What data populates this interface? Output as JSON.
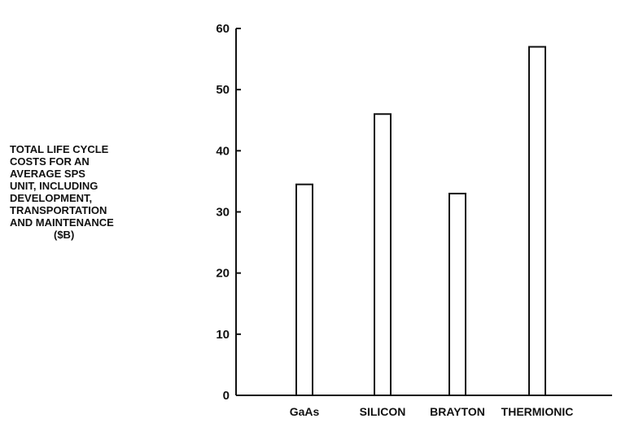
{
  "chart_data": {
    "type": "bar",
    "categories": [
      "GaAs",
      "SILICON",
      "BRAYTON",
      "THERMIONIC"
    ],
    "values": [
      34.5,
      46,
      33,
      57
    ],
    "ylabel_lines": [
      "TOTAL LIFE CYCLE",
      "COSTS FOR AN",
      "AVERAGE SPS",
      "UNIT, INCLUDING",
      "DEVELOPMENT,",
      "TRANSPORTATION",
      "AND MAINTENANCE",
      "($B)"
    ],
    "yticks": [
      0,
      10,
      20,
      30,
      40,
      50,
      60
    ],
    "ylim": [
      0,
      60
    ],
    "grid": false
  }
}
